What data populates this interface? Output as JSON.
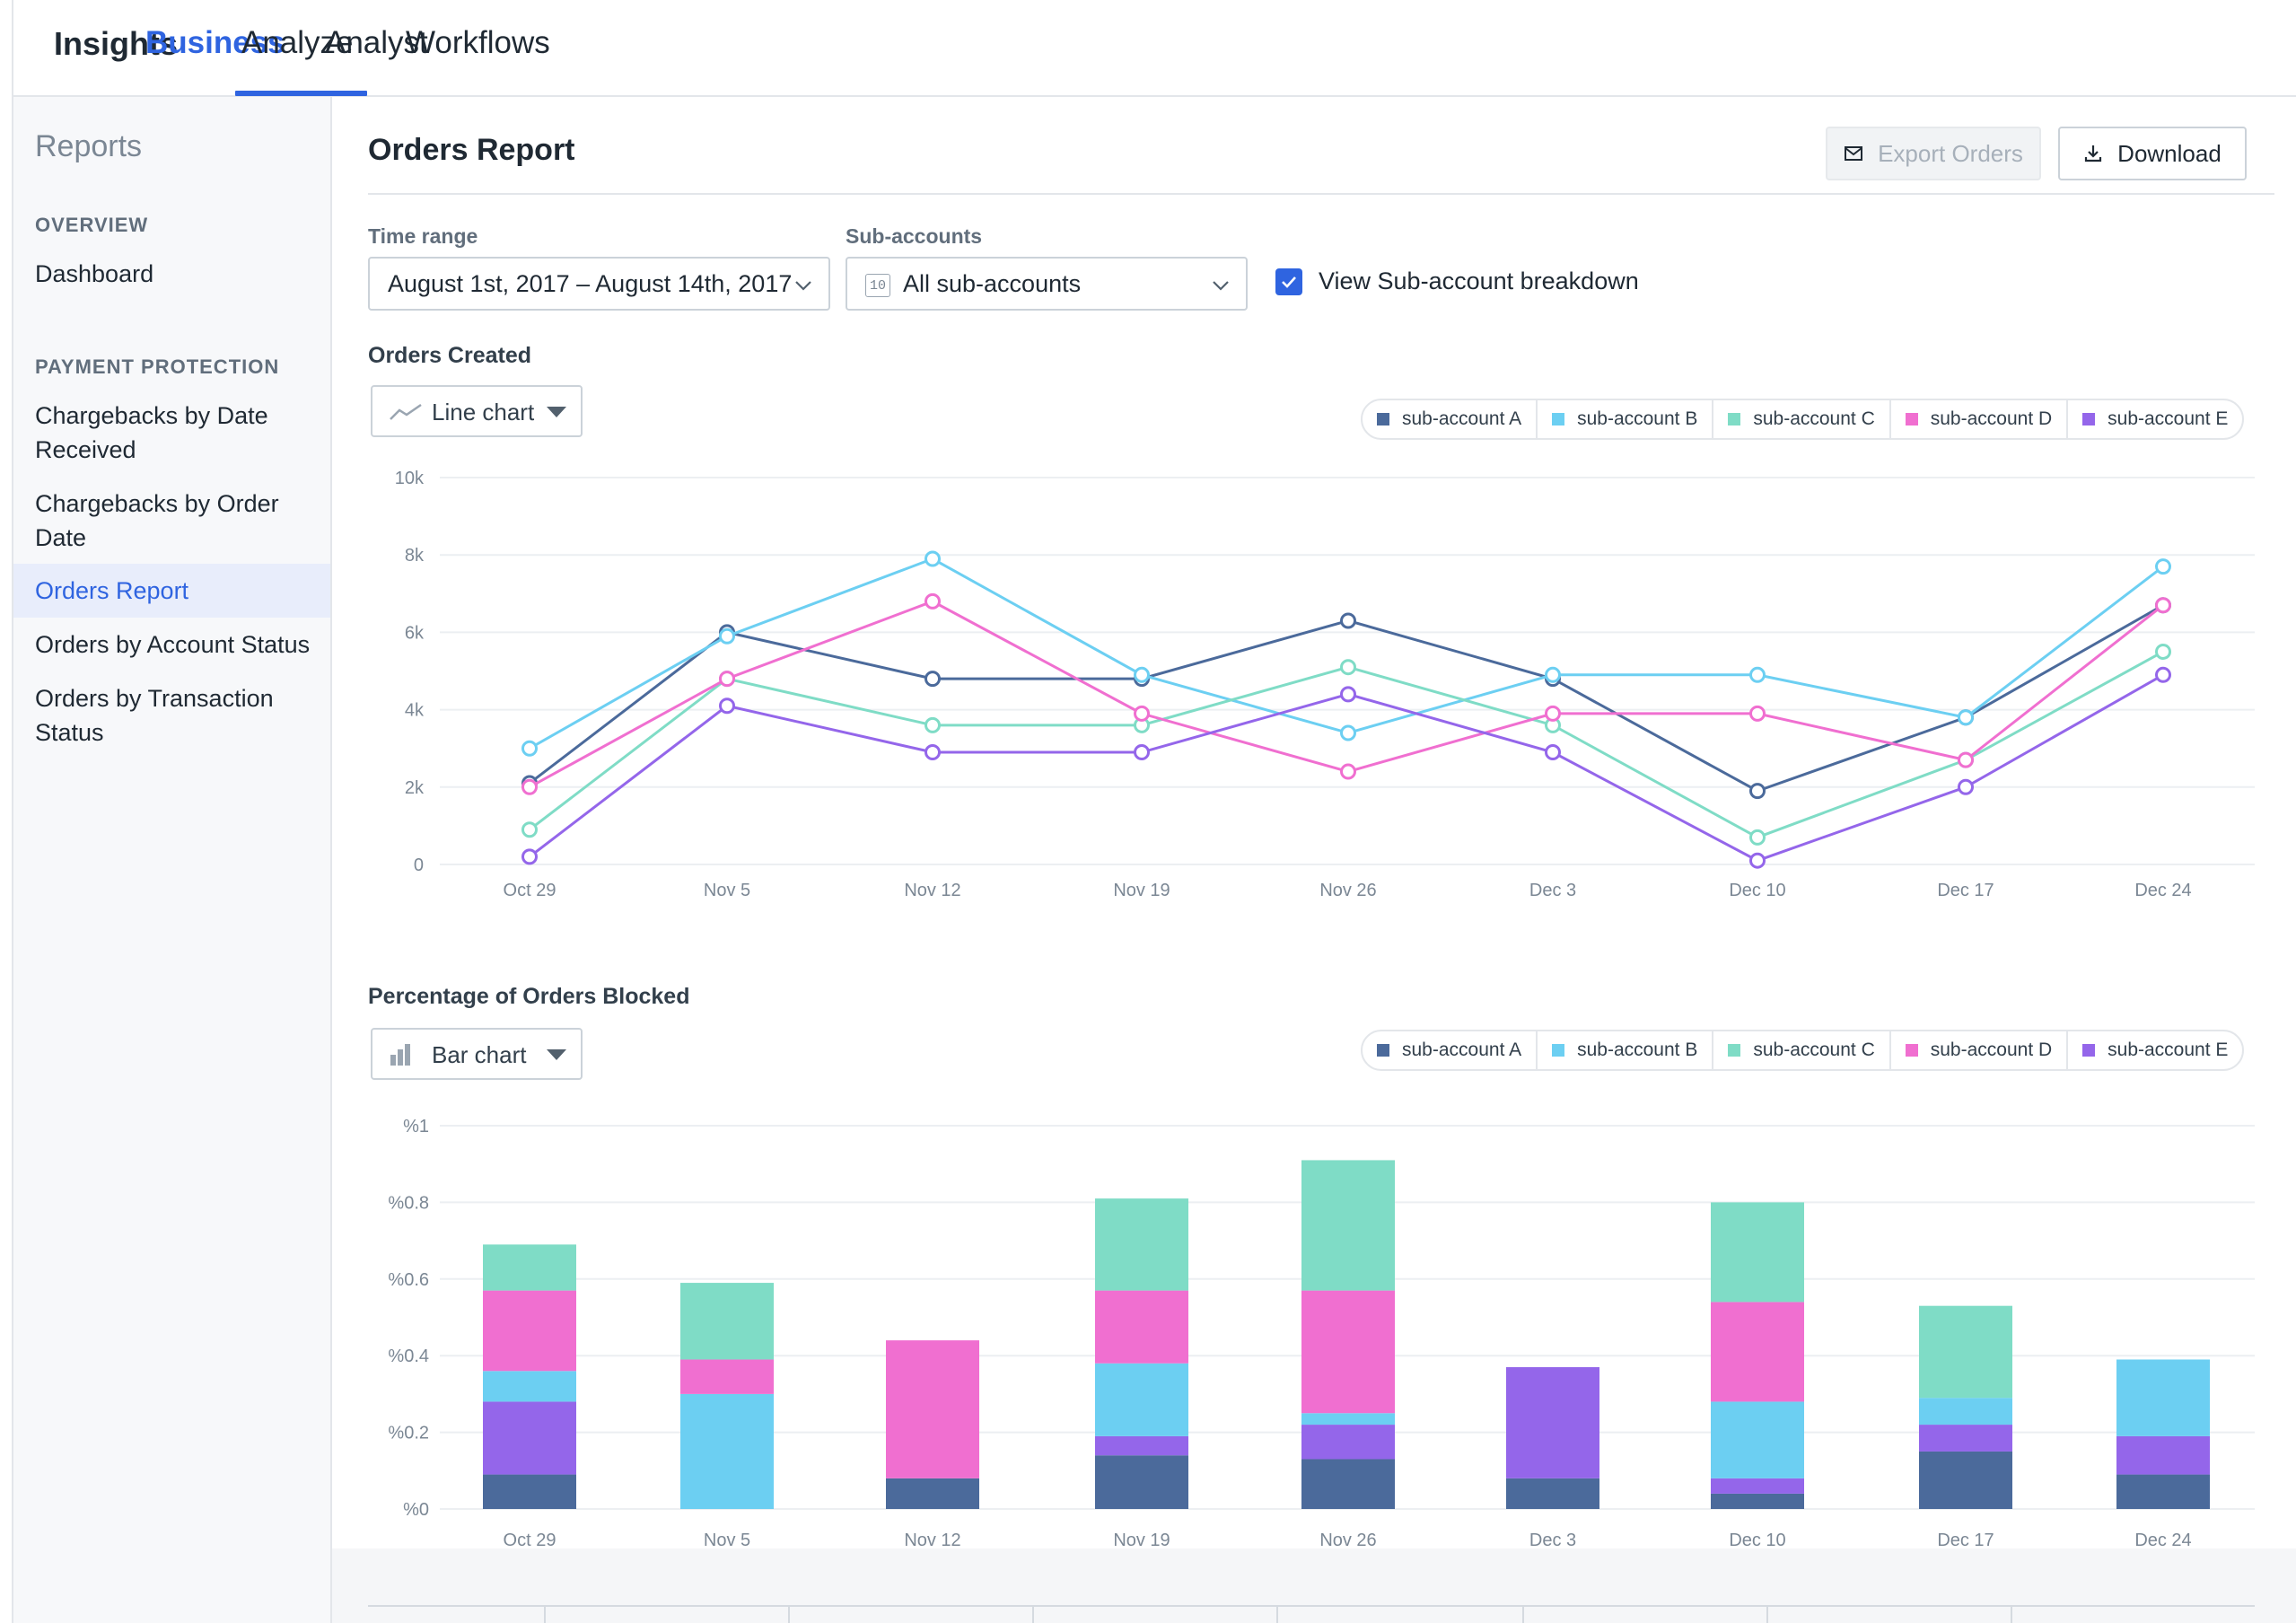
{
  "topnav": {
    "brand": "Insights",
    "tabs": [
      {
        "label": "Business",
        "active": true
      },
      {
        "label": "Analyze",
        "active": false
      },
      {
        "label": "Analyst",
        "active": false
      },
      {
        "label": "Workflows",
        "active": false
      }
    ]
  },
  "sidebar": {
    "title": "Reports",
    "sections": [
      {
        "heading": "OVERVIEW",
        "items": [
          "Dashboard"
        ]
      },
      {
        "heading": "PAYMENT PROTECTION",
        "items": [
          "Chargebacks by Date Received",
          "Chargebacks by Order Date",
          "Orders Report",
          "Orders by Account Status",
          "Orders by Transaction Status"
        ]
      }
    ],
    "active_item": "Orders Report"
  },
  "page": {
    "title": "Orders Report",
    "export_label": "Export Orders",
    "download_label": "Download"
  },
  "filters": {
    "time_range_label": "Time range",
    "time_range_value": "August 1st, 2017 – August 14th, 2017",
    "subaccounts_label": "Sub-accounts",
    "subaccounts_count": "10",
    "subaccounts_value": "All sub-accounts",
    "breakdown_label": "View Sub-account breakdown",
    "breakdown_checked": true
  },
  "colors": {
    "accent": "#2f64e0",
    "series": [
      "#4b6a9b",
      "#6ccff2",
      "#7fdcc6",
      "#f06fd0",
      "#9466ea"
    ]
  },
  "legend": [
    "sub-account A",
    "sub-account B",
    "sub-account C",
    "sub-account D",
    "sub-account E"
  ],
  "chart_data": [
    {
      "type": "line",
      "title": "Orders Created",
      "chart_type_label": "Line chart",
      "categories": [
        "Oct 29",
        "Nov 5",
        "Nov 12",
        "Nov 19",
        "Nov 26",
        "Dec 3",
        "Dec 10",
        "Dec 17",
        "Dec 24"
      ],
      "ylim": [
        0,
        10000
      ],
      "yticks": [
        {
          "value": 0,
          "label": "0"
        },
        {
          "value": 2000,
          "label": "2k"
        },
        {
          "value": 4000,
          "label": "4k"
        },
        {
          "value": 6000,
          "label": "6k"
        },
        {
          "value": 8000,
          "label": "8k"
        },
        {
          "value": 10000,
          "label": "10k"
        }
      ],
      "series": [
        {
          "name": "sub-account A",
          "values": [
            2100,
            6000,
            4800,
            4800,
            6300,
            4800,
            1900,
            3800,
            6700
          ]
        },
        {
          "name": "sub-account B",
          "values": [
            3000,
            5900,
            7900,
            4900,
            3400,
            4900,
            4900,
            3800,
            7700
          ]
        },
        {
          "name": "sub-account C",
          "values": [
            900,
            4800,
            3600,
            3600,
            5100,
            3600,
            700,
            2700,
            5500
          ]
        },
        {
          "name": "sub-account D",
          "values": [
            2000,
            4800,
            6800,
            3900,
            2400,
            3900,
            3900,
            2700,
            6700
          ]
        },
        {
          "name": "sub-account E",
          "values": [
            200,
            4100,
            2900,
            2900,
            4400,
            2900,
            100,
            2000,
            4900
          ]
        }
      ]
    },
    {
      "type": "bar",
      "stacked": true,
      "title": "Percentage of Orders Blocked",
      "chart_type_label": "Bar chart",
      "categories": [
        "Oct 29",
        "Nov 5",
        "Nov 12",
        "Nov 19",
        "Nov 26",
        "Dec 3",
        "Dec 10",
        "Dec 17",
        "Dec 24"
      ],
      "ylim": [
        0,
        1
      ],
      "yticks": [
        {
          "value": 0,
          "label": "%0"
        },
        {
          "value": 0.2,
          "label": "%0.2"
        },
        {
          "value": 0.4,
          "label": "%0.4"
        },
        {
          "value": 0.6,
          "label": "%0.6"
        },
        {
          "value": 0.8,
          "label": "%0.8"
        },
        {
          "value": 1,
          "label": "%1"
        }
      ],
      "stack_order": [
        "sub-account A",
        "sub-account E",
        "sub-account B",
        "sub-account D",
        "sub-account C"
      ],
      "series": [
        {
          "name": "sub-account A",
          "values": [
            0.09,
            0,
            0.08,
            0.14,
            0.13,
            0.08,
            0.04,
            0.15,
            0.09
          ]
        },
        {
          "name": "sub-account B",
          "values": [
            0.08,
            0.3,
            0,
            0.19,
            0.03,
            0,
            0.2,
            0.07,
            0.2
          ]
        },
        {
          "name": "sub-account C",
          "values": [
            0.12,
            0.2,
            0,
            0.24,
            0.34,
            0,
            0.26,
            0.24,
            0
          ]
        },
        {
          "name": "sub-account D",
          "values": [
            0.21,
            0.09,
            0.36,
            0.19,
            0.32,
            0,
            0.26,
            0,
            0
          ]
        },
        {
          "name": "sub-account E",
          "values": [
            0.19,
            0,
            0,
            0.05,
            0.09,
            0.29,
            0.04,
            0.07,
            0.1
          ]
        }
      ]
    }
  ]
}
